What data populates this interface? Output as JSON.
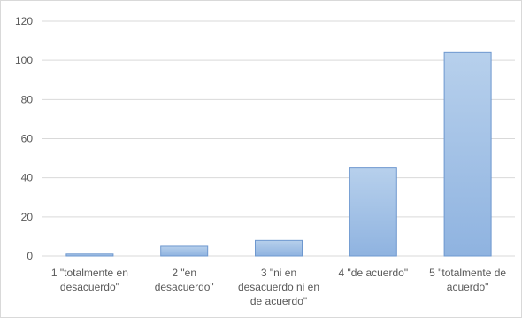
{
  "chart_data": {
    "type": "bar",
    "title": "",
    "xlabel": "",
    "ylabel": "",
    "ylim": [
      0,
      120
    ],
    "yticks": [
      0,
      20,
      40,
      60,
      80,
      100,
      120
    ],
    "grid": true,
    "legend": "none",
    "categories": [
      [
        "1 \"totalmente en",
        "desacuerdo\""
      ],
      [
        "2 \"en",
        "desacuerdo\""
      ],
      [
        "3 \"ni en",
        "desacuerdo ni en",
        "de acuerdo\""
      ],
      [
        "4 \"de acuerdo\""
      ],
      [
        "5 \"totalmente de",
        "acuerdo\""
      ]
    ],
    "values": [
      1,
      5,
      8,
      45,
      104
    ],
    "colors": {
      "bar_top": "#b7d0ec",
      "bar_bottom": "#8fb3e0",
      "bar_stroke": "#6e98cf",
      "grid": "#d9d9d9",
      "text": "#595959"
    }
  }
}
